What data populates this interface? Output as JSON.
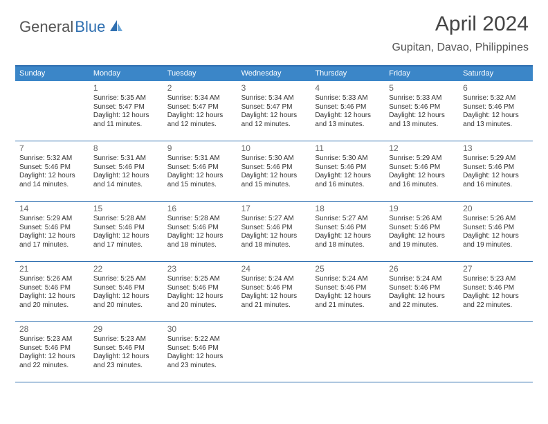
{
  "brand": {
    "part1": "General",
    "part2": "Blue"
  },
  "title": "April 2024",
  "location": "Gupitan, Davao, Philippines",
  "colors": {
    "header_bg": "#3b86c8",
    "header_text": "#ffffff",
    "border": "#2f6fb0",
    "body_text": "#333333",
    "daynum_text": "#666666",
    "brand_gray": "#555555",
    "brand_blue": "#2f6fb0",
    "background": "#ffffff"
  },
  "typography": {
    "title_fontsize": 30,
    "location_fontsize": 16,
    "dayhead_fontsize": 11,
    "daynum_fontsize": 12,
    "cell_fontsize": 10
  },
  "day_headers": [
    "Sunday",
    "Monday",
    "Tuesday",
    "Wednesday",
    "Thursday",
    "Friday",
    "Saturday"
  ],
  "weeks": [
    [
      {
        "n": "",
        "sr": "",
        "ss": "",
        "dl": ""
      },
      {
        "n": "1",
        "sr": "Sunrise: 5:35 AM",
        "ss": "Sunset: 5:47 PM",
        "dl": "Daylight: 12 hours and 11 minutes."
      },
      {
        "n": "2",
        "sr": "Sunrise: 5:34 AM",
        "ss": "Sunset: 5:47 PM",
        "dl": "Daylight: 12 hours and 12 minutes."
      },
      {
        "n": "3",
        "sr": "Sunrise: 5:34 AM",
        "ss": "Sunset: 5:47 PM",
        "dl": "Daylight: 12 hours and 12 minutes."
      },
      {
        "n": "4",
        "sr": "Sunrise: 5:33 AM",
        "ss": "Sunset: 5:46 PM",
        "dl": "Daylight: 12 hours and 13 minutes."
      },
      {
        "n": "5",
        "sr": "Sunrise: 5:33 AM",
        "ss": "Sunset: 5:46 PM",
        "dl": "Daylight: 12 hours and 13 minutes."
      },
      {
        "n": "6",
        "sr": "Sunrise: 5:32 AM",
        "ss": "Sunset: 5:46 PM",
        "dl": "Daylight: 12 hours and 13 minutes."
      }
    ],
    [
      {
        "n": "7",
        "sr": "Sunrise: 5:32 AM",
        "ss": "Sunset: 5:46 PM",
        "dl": "Daylight: 12 hours and 14 minutes."
      },
      {
        "n": "8",
        "sr": "Sunrise: 5:31 AM",
        "ss": "Sunset: 5:46 PM",
        "dl": "Daylight: 12 hours and 14 minutes."
      },
      {
        "n": "9",
        "sr": "Sunrise: 5:31 AM",
        "ss": "Sunset: 5:46 PM",
        "dl": "Daylight: 12 hours and 15 minutes."
      },
      {
        "n": "10",
        "sr": "Sunrise: 5:30 AM",
        "ss": "Sunset: 5:46 PM",
        "dl": "Daylight: 12 hours and 15 minutes."
      },
      {
        "n": "11",
        "sr": "Sunrise: 5:30 AM",
        "ss": "Sunset: 5:46 PM",
        "dl": "Daylight: 12 hours and 16 minutes."
      },
      {
        "n": "12",
        "sr": "Sunrise: 5:29 AM",
        "ss": "Sunset: 5:46 PM",
        "dl": "Daylight: 12 hours and 16 minutes."
      },
      {
        "n": "13",
        "sr": "Sunrise: 5:29 AM",
        "ss": "Sunset: 5:46 PM",
        "dl": "Daylight: 12 hours and 16 minutes."
      }
    ],
    [
      {
        "n": "14",
        "sr": "Sunrise: 5:29 AM",
        "ss": "Sunset: 5:46 PM",
        "dl": "Daylight: 12 hours and 17 minutes."
      },
      {
        "n": "15",
        "sr": "Sunrise: 5:28 AM",
        "ss": "Sunset: 5:46 PM",
        "dl": "Daylight: 12 hours and 17 minutes."
      },
      {
        "n": "16",
        "sr": "Sunrise: 5:28 AM",
        "ss": "Sunset: 5:46 PM",
        "dl": "Daylight: 12 hours and 18 minutes."
      },
      {
        "n": "17",
        "sr": "Sunrise: 5:27 AM",
        "ss": "Sunset: 5:46 PM",
        "dl": "Daylight: 12 hours and 18 minutes."
      },
      {
        "n": "18",
        "sr": "Sunrise: 5:27 AM",
        "ss": "Sunset: 5:46 PM",
        "dl": "Daylight: 12 hours and 18 minutes."
      },
      {
        "n": "19",
        "sr": "Sunrise: 5:26 AM",
        "ss": "Sunset: 5:46 PM",
        "dl": "Daylight: 12 hours and 19 minutes."
      },
      {
        "n": "20",
        "sr": "Sunrise: 5:26 AM",
        "ss": "Sunset: 5:46 PM",
        "dl": "Daylight: 12 hours and 19 minutes."
      }
    ],
    [
      {
        "n": "21",
        "sr": "Sunrise: 5:26 AM",
        "ss": "Sunset: 5:46 PM",
        "dl": "Daylight: 12 hours and 20 minutes."
      },
      {
        "n": "22",
        "sr": "Sunrise: 5:25 AM",
        "ss": "Sunset: 5:46 PM",
        "dl": "Daylight: 12 hours and 20 minutes."
      },
      {
        "n": "23",
        "sr": "Sunrise: 5:25 AM",
        "ss": "Sunset: 5:46 PM",
        "dl": "Daylight: 12 hours and 20 minutes."
      },
      {
        "n": "24",
        "sr": "Sunrise: 5:24 AM",
        "ss": "Sunset: 5:46 PM",
        "dl": "Daylight: 12 hours and 21 minutes."
      },
      {
        "n": "25",
        "sr": "Sunrise: 5:24 AM",
        "ss": "Sunset: 5:46 PM",
        "dl": "Daylight: 12 hours and 21 minutes."
      },
      {
        "n": "26",
        "sr": "Sunrise: 5:24 AM",
        "ss": "Sunset: 5:46 PM",
        "dl": "Daylight: 12 hours and 22 minutes."
      },
      {
        "n": "27",
        "sr": "Sunrise: 5:23 AM",
        "ss": "Sunset: 5:46 PM",
        "dl": "Daylight: 12 hours and 22 minutes."
      }
    ],
    [
      {
        "n": "28",
        "sr": "Sunrise: 5:23 AM",
        "ss": "Sunset: 5:46 PM",
        "dl": "Daylight: 12 hours and 22 minutes."
      },
      {
        "n": "29",
        "sr": "Sunrise: 5:23 AM",
        "ss": "Sunset: 5:46 PM",
        "dl": "Daylight: 12 hours and 23 minutes."
      },
      {
        "n": "30",
        "sr": "Sunrise: 5:22 AM",
        "ss": "Sunset: 5:46 PM",
        "dl": "Daylight: 12 hours and 23 minutes."
      },
      {
        "n": "",
        "sr": "",
        "ss": "",
        "dl": ""
      },
      {
        "n": "",
        "sr": "",
        "ss": "",
        "dl": ""
      },
      {
        "n": "",
        "sr": "",
        "ss": "",
        "dl": ""
      },
      {
        "n": "",
        "sr": "",
        "ss": "",
        "dl": ""
      }
    ]
  ]
}
